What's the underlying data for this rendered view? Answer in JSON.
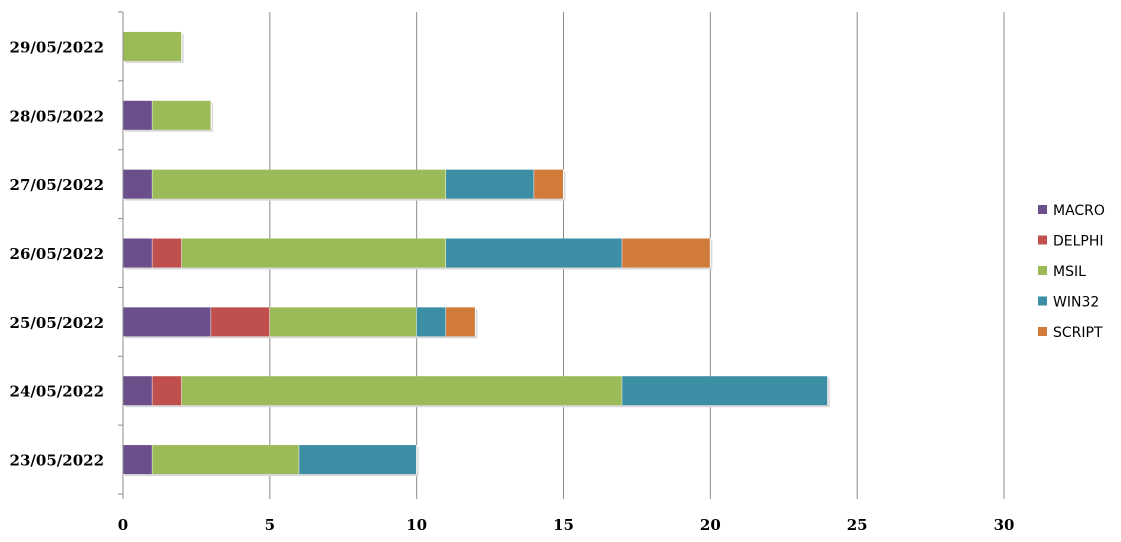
{
  "chart_data": {
    "type": "bar",
    "orientation": "horizontal",
    "stacked": true,
    "categories": [
      "23/05/2022",
      "24/05/2022",
      "25/05/2022",
      "26/05/2022",
      "27/05/2022",
      "28/05/2022",
      "29/05/2022"
    ],
    "series": [
      {
        "name": "MACRO",
        "color": "#6a4f8b",
        "values": [
          1,
          1,
          3,
          1,
          1,
          1,
          0
        ]
      },
      {
        "name": "DELPHI",
        "color": "#c0504d",
        "values": [
          0,
          1,
          2,
          1,
          0,
          0,
          0
        ]
      },
      {
        "name": "MSIL",
        "color": "#9bbb59",
        "values": [
          5,
          15,
          5,
          9,
          10,
          2,
          2
        ]
      },
      {
        "name": "WIN32",
        "color": "#3c8ea5",
        "values": [
          4,
          7,
          1,
          6,
          3,
          0,
          0
        ]
      },
      {
        "name": "SCRIPT",
        "color": "#d07b3a",
        "values": [
          0,
          0,
          1,
          3,
          1,
          0,
          0
        ]
      }
    ],
    "xlim": [
      0,
      30
    ],
    "xticks": [
      0,
      5,
      10,
      15,
      20,
      25,
      30
    ],
    "grid": "vertical",
    "legend": "right",
    "title": "",
    "xlabel": "",
    "ylabel": ""
  }
}
